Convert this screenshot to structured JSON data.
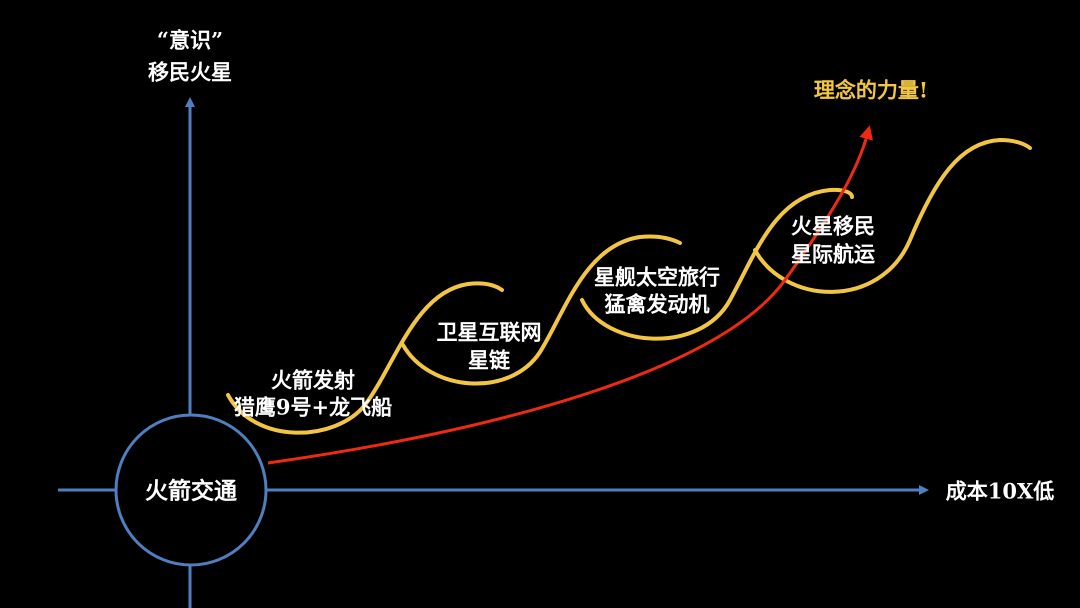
{
  "y_axis_label": {
    "line1": "“意识”",
    "line2": "移民火星"
  },
  "x_axis_label": "成本10X低",
  "origin_label": "火箭交通",
  "stages": [
    {
      "line1": "火箭发射",
      "line2": "猎鹰9号+龙飞船"
    },
    {
      "line1": "卫星互联网",
      "line2": "星链"
    },
    {
      "line1": "星舰太空旅行",
      "line2": "猛禽发动机"
    },
    {
      "line1": "火星移民",
      "line2": "星际航运"
    }
  ],
  "trend_label": "理念的力量!",
  "colors": {
    "axis": "#4f7fbf",
    "s_curve": "#f2c644",
    "trend_arrow": "#ee2a12",
    "background": "#000000",
    "text": "#ffffff"
  }
}
